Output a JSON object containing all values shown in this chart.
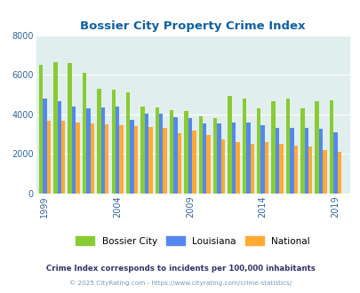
{
  "title": "Bossier City Property Crime Index",
  "title_color": "#1060a0",
  "years": [
    1999,
    2000,
    2001,
    2002,
    2003,
    2004,
    2005,
    2006,
    2007,
    2008,
    2009,
    2010,
    2011,
    2012,
    2013,
    2014,
    2015,
    2016,
    2017,
    2018,
    2019,
    2020
  ],
  "bossier_city": [
    6500,
    6650,
    6600,
    6100,
    5300,
    5250,
    5100,
    4400,
    4350,
    4200,
    4150,
    3900,
    3800,
    4950,
    4800,
    4300,
    4650,
    4800,
    4300,
    4650,
    4700,
    0
  ],
  "louisiana": [
    4800,
    4650,
    4400,
    4300,
    4350,
    4400,
    3700,
    4050,
    4050,
    3850,
    3800,
    3550,
    3550,
    3600,
    3600,
    3450,
    3300,
    3300,
    3300,
    3250,
    3100,
    0
  ],
  "national": [
    3650,
    3650,
    3600,
    3550,
    3500,
    3450,
    3400,
    3350,
    3300,
    3050,
    3200,
    2950,
    2750,
    2600,
    2500,
    2600,
    2500,
    2400,
    2350,
    2200,
    2100,
    0
  ],
  "bar_colors": [
    "#88cc33",
    "#5588ee",
    "#ffaa33"
  ],
  "plot_bg": "#e0eeee",
  "ylim": [
    0,
    8000
  ],
  "yticks": [
    0,
    2000,
    4000,
    6000,
    8000
  ],
  "xtick_labels": [
    "1999",
    "2004",
    "2009",
    "2014",
    "2019"
  ],
  "xtick_positions": [
    0,
    5,
    10,
    15,
    20
  ],
  "legend_labels": [
    "Bossier City",
    "Louisiana",
    "National"
  ],
  "footnote1": "Crime Index corresponds to incidents per 100,000 inhabitants",
  "footnote2": "© 2025 CityRating.com - https://www.cityrating.com/crime-statistics/",
  "footnote1_color": "#333366",
  "footnote2_color": "#7799bb",
  "bar_width": 0.27
}
